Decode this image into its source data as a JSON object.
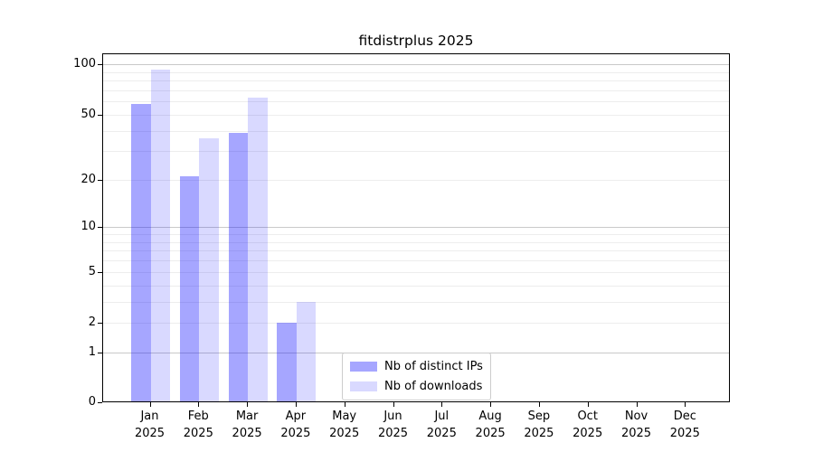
{
  "chart_data": {
    "type": "bar",
    "title": "fitdistrplus 2025",
    "categories": [
      "Jan",
      "Feb",
      "Mar",
      "Apr",
      "May",
      "Jun",
      "Jul",
      "Aug",
      "Sep",
      "Oct",
      "Nov",
      "Dec"
    ],
    "year_label": "2025",
    "series": [
      {
        "name": "Nb of distinct IPs",
        "color": "#A6A6FF",
        "fill": "#0000FF59",
        "values": [
          58,
          21,
          39,
          2,
          null,
          null,
          null,
          null,
          null,
          null,
          null,
          null
        ]
      },
      {
        "name": "Nb of downloads",
        "color": "#D9D9FF",
        "fill": "#0000FF26",
        "values": [
          93,
          36,
          63,
          3,
          null,
          null,
          null,
          null,
          null,
          null,
          null,
          null
        ]
      }
    ],
    "yscale": "log1p",
    "yticks": [
      0,
      1,
      2,
      5,
      10,
      20,
      50,
      100
    ],
    "ylim": [
      0,
      117
    ],
    "grid": true,
    "grid_major": [
      1,
      10,
      100
    ],
    "grid_minor": [
      2,
      3,
      4,
      5,
      6,
      7,
      8,
      9,
      20,
      30,
      40,
      50,
      60,
      70,
      80,
      90
    ],
    "grid_color_major": "#c9c9c9",
    "grid_color_minor": "#ededed",
    "axis_color": "#000000",
    "legend_position": "bottom-center"
  }
}
